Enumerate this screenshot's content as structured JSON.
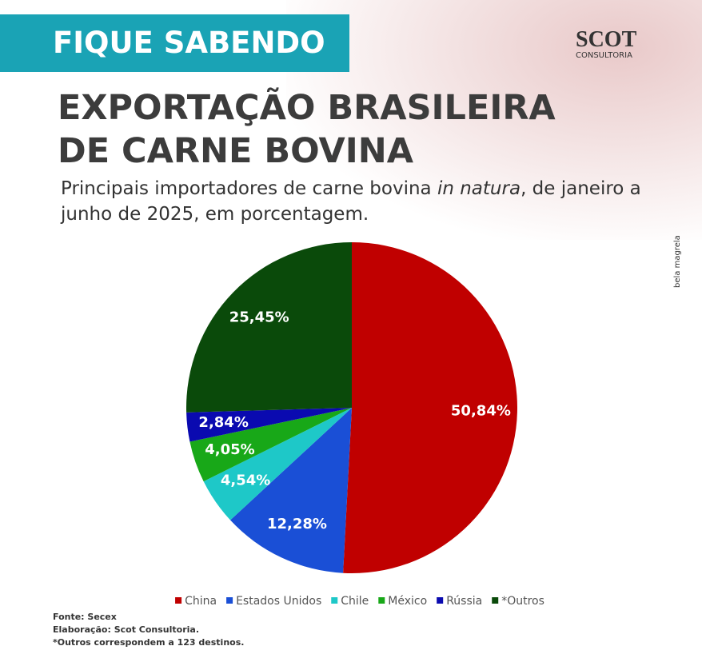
{
  "banner": "FIQUE SABENDO",
  "logo": {
    "name": "SCOT",
    "tagline": "CONSULTORIA"
  },
  "credit": "bela magrela",
  "chart_data": {
    "type": "pie",
    "title": "EXPORTAÇÃO BRASILEIRA DE CARNE BOVINA",
    "subtitle": [
      "Principais importadores de carne bovina ",
      "in natura",
      ", de janeiro a junho de 2025, em porcentagem."
    ],
    "categories": [
      "China",
      "Estados Unidos",
      "Chile",
      "México",
      "Rússia",
      "*Outros"
    ],
    "values": [
      50.84,
      12.28,
      4.54,
      4.05,
      2.84,
      25.45
    ],
    "value_labels": [
      "50,84%",
      "12,28%",
      "4,54%",
      "4,05%",
      "2,84%",
      "25,45%"
    ],
    "colors": [
      "#c00000",
      "#1a4fd6",
      "#1ec8c8",
      "#18a818",
      "#0a0ab0",
      "#0a4a0a"
    ]
  },
  "footer": [
    "Fonte: Secex",
    "Elaboração: Scot Consultoria.",
    "*Outros correspondem a 123 destinos."
  ]
}
